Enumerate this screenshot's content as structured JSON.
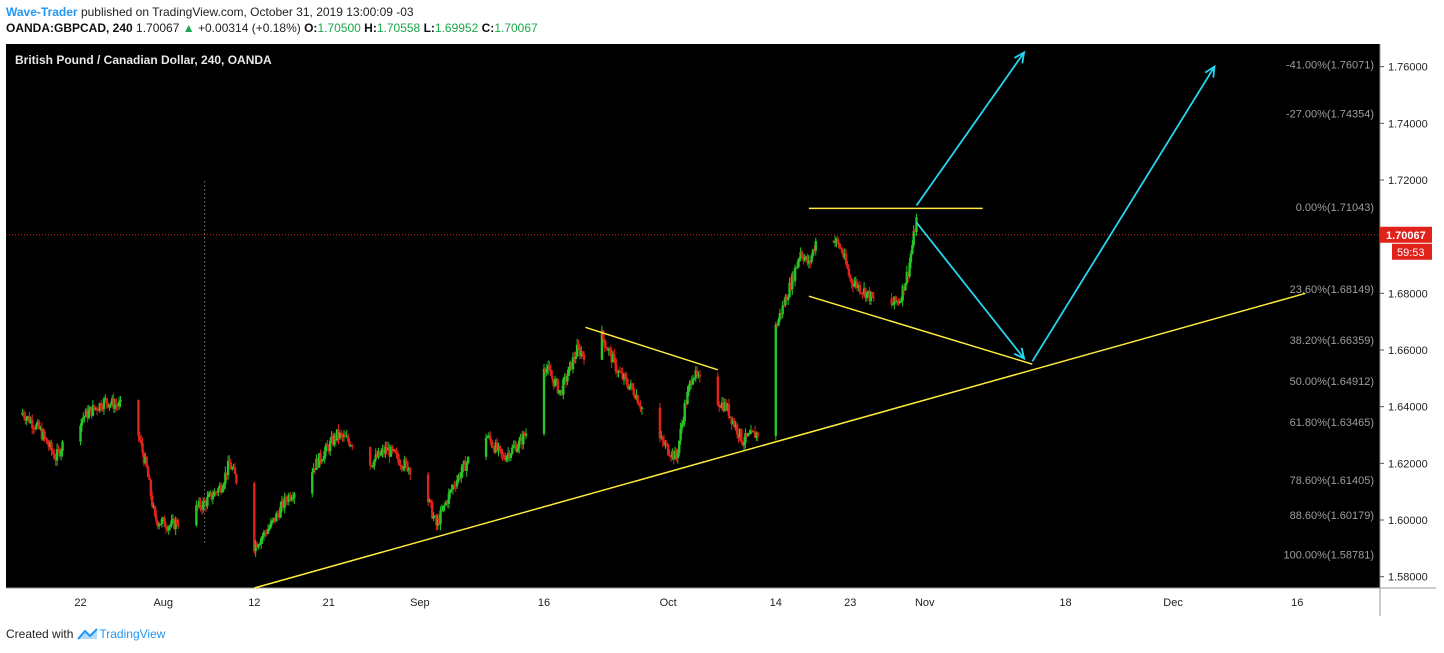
{
  "header": {
    "author": "Wave-Trader",
    "published_text": "published on TradingView.com, October 31, 2019 13:00:09 -03",
    "symbol": "OANDA:GBPCAD, 240",
    "last": "1.70067",
    "change": "+0.00314 (+0.18%)",
    "o_label": "O:",
    "o_value": "1.70500",
    "h_label": "H:",
    "h_value": "1.70558",
    "l_label": "L:",
    "l_value": "1.69952",
    "c_label": "C:",
    "c_value": "1.70067"
  },
  "footer": {
    "created_with": "Created with",
    "brand": "TradingView"
  },
  "colors": {
    "up": "#26c626",
    "down": "#e0221b",
    "trendline": "#ffeb3b",
    "arrow": "#26d6f0",
    "price_tag": "#e0221b",
    "background": "#000000"
  },
  "icons": {
    "up_arrow": "triangle-up-icon",
    "brand_logo": "tradingview-logo-icon"
  },
  "chart_data": {
    "type": "candlestick",
    "title": "British Pound / Canadian Dollar, 240, OANDA",
    "ylim": [
      1.576,
      1.768
    ],
    "y_ticks": [
      "1.58000",
      "1.60000",
      "1.62000",
      "1.64000",
      "1.66000",
      "1.68000",
      "1.70000",
      "1.72000",
      "1.74000",
      "1.76000"
    ],
    "x_ticks": [
      {
        "label": "22",
        "date": "2019-07-22"
      },
      {
        "label": "Aug",
        "date": "2019-08-01"
      },
      {
        "label": "12",
        "date": "2019-08-12"
      },
      {
        "label": "21",
        "date": "2019-08-21"
      },
      {
        "label": "Sep",
        "date": "2019-09-01"
      },
      {
        "label": "16",
        "date": "2019-09-16"
      },
      {
        "label": "Oct",
        "date": "2019-10-01"
      },
      {
        "label": "14",
        "date": "2019-10-14"
      },
      {
        "label": "23",
        "date": "2019-10-23"
      },
      {
        "label": "Nov",
        "date": "2019-11-01"
      },
      {
        "label": "18",
        "date": "2019-11-18"
      },
      {
        "label": "Dec",
        "date": "2019-12-01"
      },
      {
        "label": "16",
        "date": "2019-12-16"
      }
    ],
    "xlim": [
      "2019-07-13",
      "2019-12-26"
    ],
    "last_price": {
      "value": 1.70067,
      "label": "1.70067",
      "countdown": "59:53"
    },
    "fib_levels": [
      {
        "label": "-41.00%(1.76071)",
        "value": 1.76071
      },
      {
        "label": "-27.00%(1.74354)",
        "value": 1.74354
      },
      {
        "label": "0.00%(1.71043)",
        "value": 1.71043
      },
      {
        "label": "23.60%(1.68149)",
        "value": 1.68149
      },
      {
        "label": "38.20%(1.66359)",
        "value": 1.66359
      },
      {
        "label": "50.00%(1.64912)",
        "value": 1.64912
      },
      {
        "label": "61.80%(1.63465)",
        "value": 1.63465
      },
      {
        "label": "78.60%(1.61405)",
        "value": 1.61405
      },
      {
        "label": "88.60%(1.60179)",
        "value": 1.60179
      },
      {
        "label": "100.00%(1.58781)",
        "value": 1.58781
      }
    ],
    "price_path": [
      [
        "2019-07-13",
        1.637
      ],
      [
        "2019-07-15",
        1.638
      ],
      [
        "2019-07-17",
        1.632
      ],
      [
        "2019-07-19",
        1.622
      ],
      [
        "2019-07-21",
        1.633
      ],
      [
        "2019-07-23",
        1.638
      ],
      [
        "2019-07-25",
        1.642
      ],
      [
        "2019-07-27",
        1.64
      ],
      [
        "2019-07-29",
        1.63
      ],
      [
        "2019-07-30",
        1.618
      ],
      [
        "2019-07-31",
        1.6
      ],
      [
        "2019-08-02",
        1.598
      ],
      [
        "2019-08-04",
        1.602
      ],
      [
        "2019-08-06",
        1.606
      ],
      [
        "2019-08-08",
        1.612
      ],
      [
        "2019-08-09",
        1.62
      ],
      [
        "2019-08-10",
        1.613
      ],
      [
        "2019-08-12",
        1.591
      ],
      [
        "2019-08-14",
        1.598
      ],
      [
        "2019-08-16",
        1.608
      ],
      [
        "2019-08-18",
        1.614
      ],
      [
        "2019-08-20",
        1.622
      ],
      [
        "2019-08-22",
        1.63
      ],
      [
        "2019-08-24",
        1.627
      ],
      [
        "2019-08-26",
        1.62
      ],
      [
        "2019-08-28",
        1.625
      ],
      [
        "2019-08-30",
        1.62
      ],
      [
        "2019-09-01",
        1.616
      ],
      [
        "2019-09-03",
        1.598
      ],
      [
        "2019-09-05",
        1.612
      ],
      [
        "2019-09-07",
        1.622
      ],
      [
        "2019-09-09",
        1.63
      ],
      [
        "2019-09-11",
        1.622
      ],
      [
        "2019-09-13",
        1.627
      ],
      [
        "2019-09-15",
        1.636
      ],
      [
        "2019-09-16",
        1.655
      ],
      [
        "2019-09-18",
        1.645
      ],
      [
        "2019-09-20",
        1.66
      ],
      [
        "2019-09-22",
        1.657
      ],
      [
        "2019-09-23",
        1.665
      ],
      [
        "2019-09-25",
        1.652
      ],
      [
        "2019-09-27",
        1.645
      ],
      [
        "2019-09-29",
        1.632
      ],
      [
        "2019-10-01",
        1.625
      ],
      [
        "2019-10-02",
        1.622
      ],
      [
        "2019-10-03",
        1.64
      ],
      [
        "2019-10-04",
        1.652
      ],
      [
        "2019-10-06",
        1.644
      ],
      [
        "2019-10-08",
        1.64
      ],
      [
        "2019-10-10",
        1.628
      ],
      [
        "2019-10-12",
        1.631
      ],
      [
        "2019-10-13",
        1.65
      ],
      [
        "2019-10-14",
        1.668
      ],
      [
        "2019-10-16",
        1.685
      ],
      [
        "2019-10-17",
        1.695
      ],
      [
        "2019-10-18",
        1.69
      ],
      [
        "2019-10-19",
        1.7
      ],
      [
        "2019-10-20",
        1.704
      ],
      [
        "2019-10-22",
        1.695
      ],
      [
        "2019-10-23",
        1.685
      ],
      [
        "2019-10-25",
        1.68
      ],
      [
        "2019-10-27",
        1.674
      ],
      [
        "2019-10-29",
        1.678
      ],
      [
        "2019-10-30",
        1.688
      ],
      [
        "2019-10-31",
        1.706
      ],
      [
        "2019-10-31",
        1.70067
      ]
    ],
    "drawings": {
      "trendlines": [
        {
          "from": [
            "2019-08-12",
            1.576
          ],
          "to": [
            "2019-12-17",
            1.68
          ]
        },
        {
          "from": [
            "2019-09-21",
            1.668
          ],
          "to": [
            "2019-10-07",
            1.653
          ]
        },
        {
          "from": [
            "2019-10-18",
            1.71
          ],
          "to": [
            "2019-11-08",
            1.71
          ]
        },
        {
          "from": [
            "2019-10-18",
            1.679
          ],
          "to": [
            "2019-11-14",
            1.655
          ]
        }
      ],
      "arrows": [
        {
          "from": [
            "2019-10-31",
            1.711
          ],
          "to": [
            "2019-11-13",
            1.765
          ]
        },
        {
          "from": [
            "2019-10-31",
            1.705
          ],
          "to": [
            "2019-11-13",
            1.657
          ]
        },
        {
          "from": [
            "2019-11-14",
            1.656
          ],
          "to": [
            "2019-12-06",
            1.76
          ]
        }
      ]
    }
  }
}
